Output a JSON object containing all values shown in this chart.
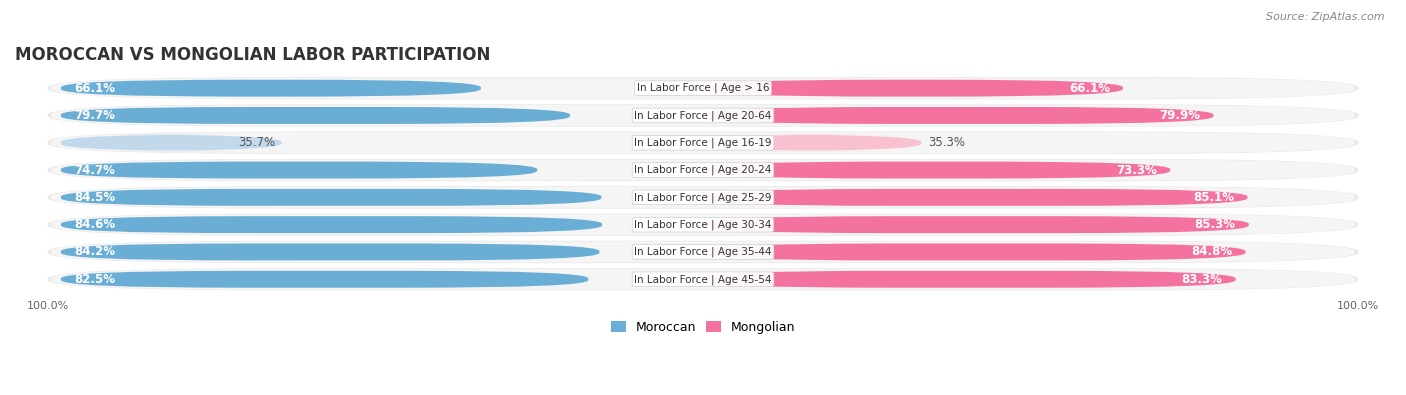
{
  "title": "MOROCCAN VS MONGOLIAN LABOR PARTICIPATION",
  "source": "Source: ZipAtlas.com",
  "categories": [
    "In Labor Force | Age > 16",
    "In Labor Force | Age 20-64",
    "In Labor Force | Age 16-19",
    "In Labor Force | Age 20-24",
    "In Labor Force | Age 25-29",
    "In Labor Force | Age 30-34",
    "In Labor Force | Age 35-44",
    "In Labor Force | Age 45-54"
  ],
  "moroccan_values": [
    66.1,
    79.7,
    35.7,
    74.7,
    84.5,
    84.6,
    84.2,
    82.5
  ],
  "mongolian_values": [
    66.1,
    79.9,
    35.3,
    73.3,
    85.1,
    85.3,
    84.8,
    83.3
  ],
  "moroccan_labels": [
    "66.1%",
    "79.7%",
    "35.7%",
    "74.7%",
    "84.5%",
    "84.6%",
    "84.2%",
    "82.5%"
  ],
  "mongolian_labels": [
    "66.1%",
    "79.9%",
    "35.3%",
    "73.3%",
    "85.1%",
    "85.3%",
    "84.8%",
    "83.3%"
  ],
  "moroccan_color_full": "#6aaed6",
  "moroccan_color_light": "#c2d8eb",
  "mongolian_color_full": "#f472a0",
  "mongolian_color_light": "#f9c0d0",
  "light_threshold": 50.0,
  "max_value": 100.0,
  "background_color": "#ffffff",
  "row_bg": "#e8e8e8",
  "row_inner_bg": "#f5f5f5",
  "title_fontsize": 12,
  "label_fontsize": 8.5,
  "category_fontsize": 7.5,
  "legend_fontsize": 9,
  "footer_fontsize": 8
}
